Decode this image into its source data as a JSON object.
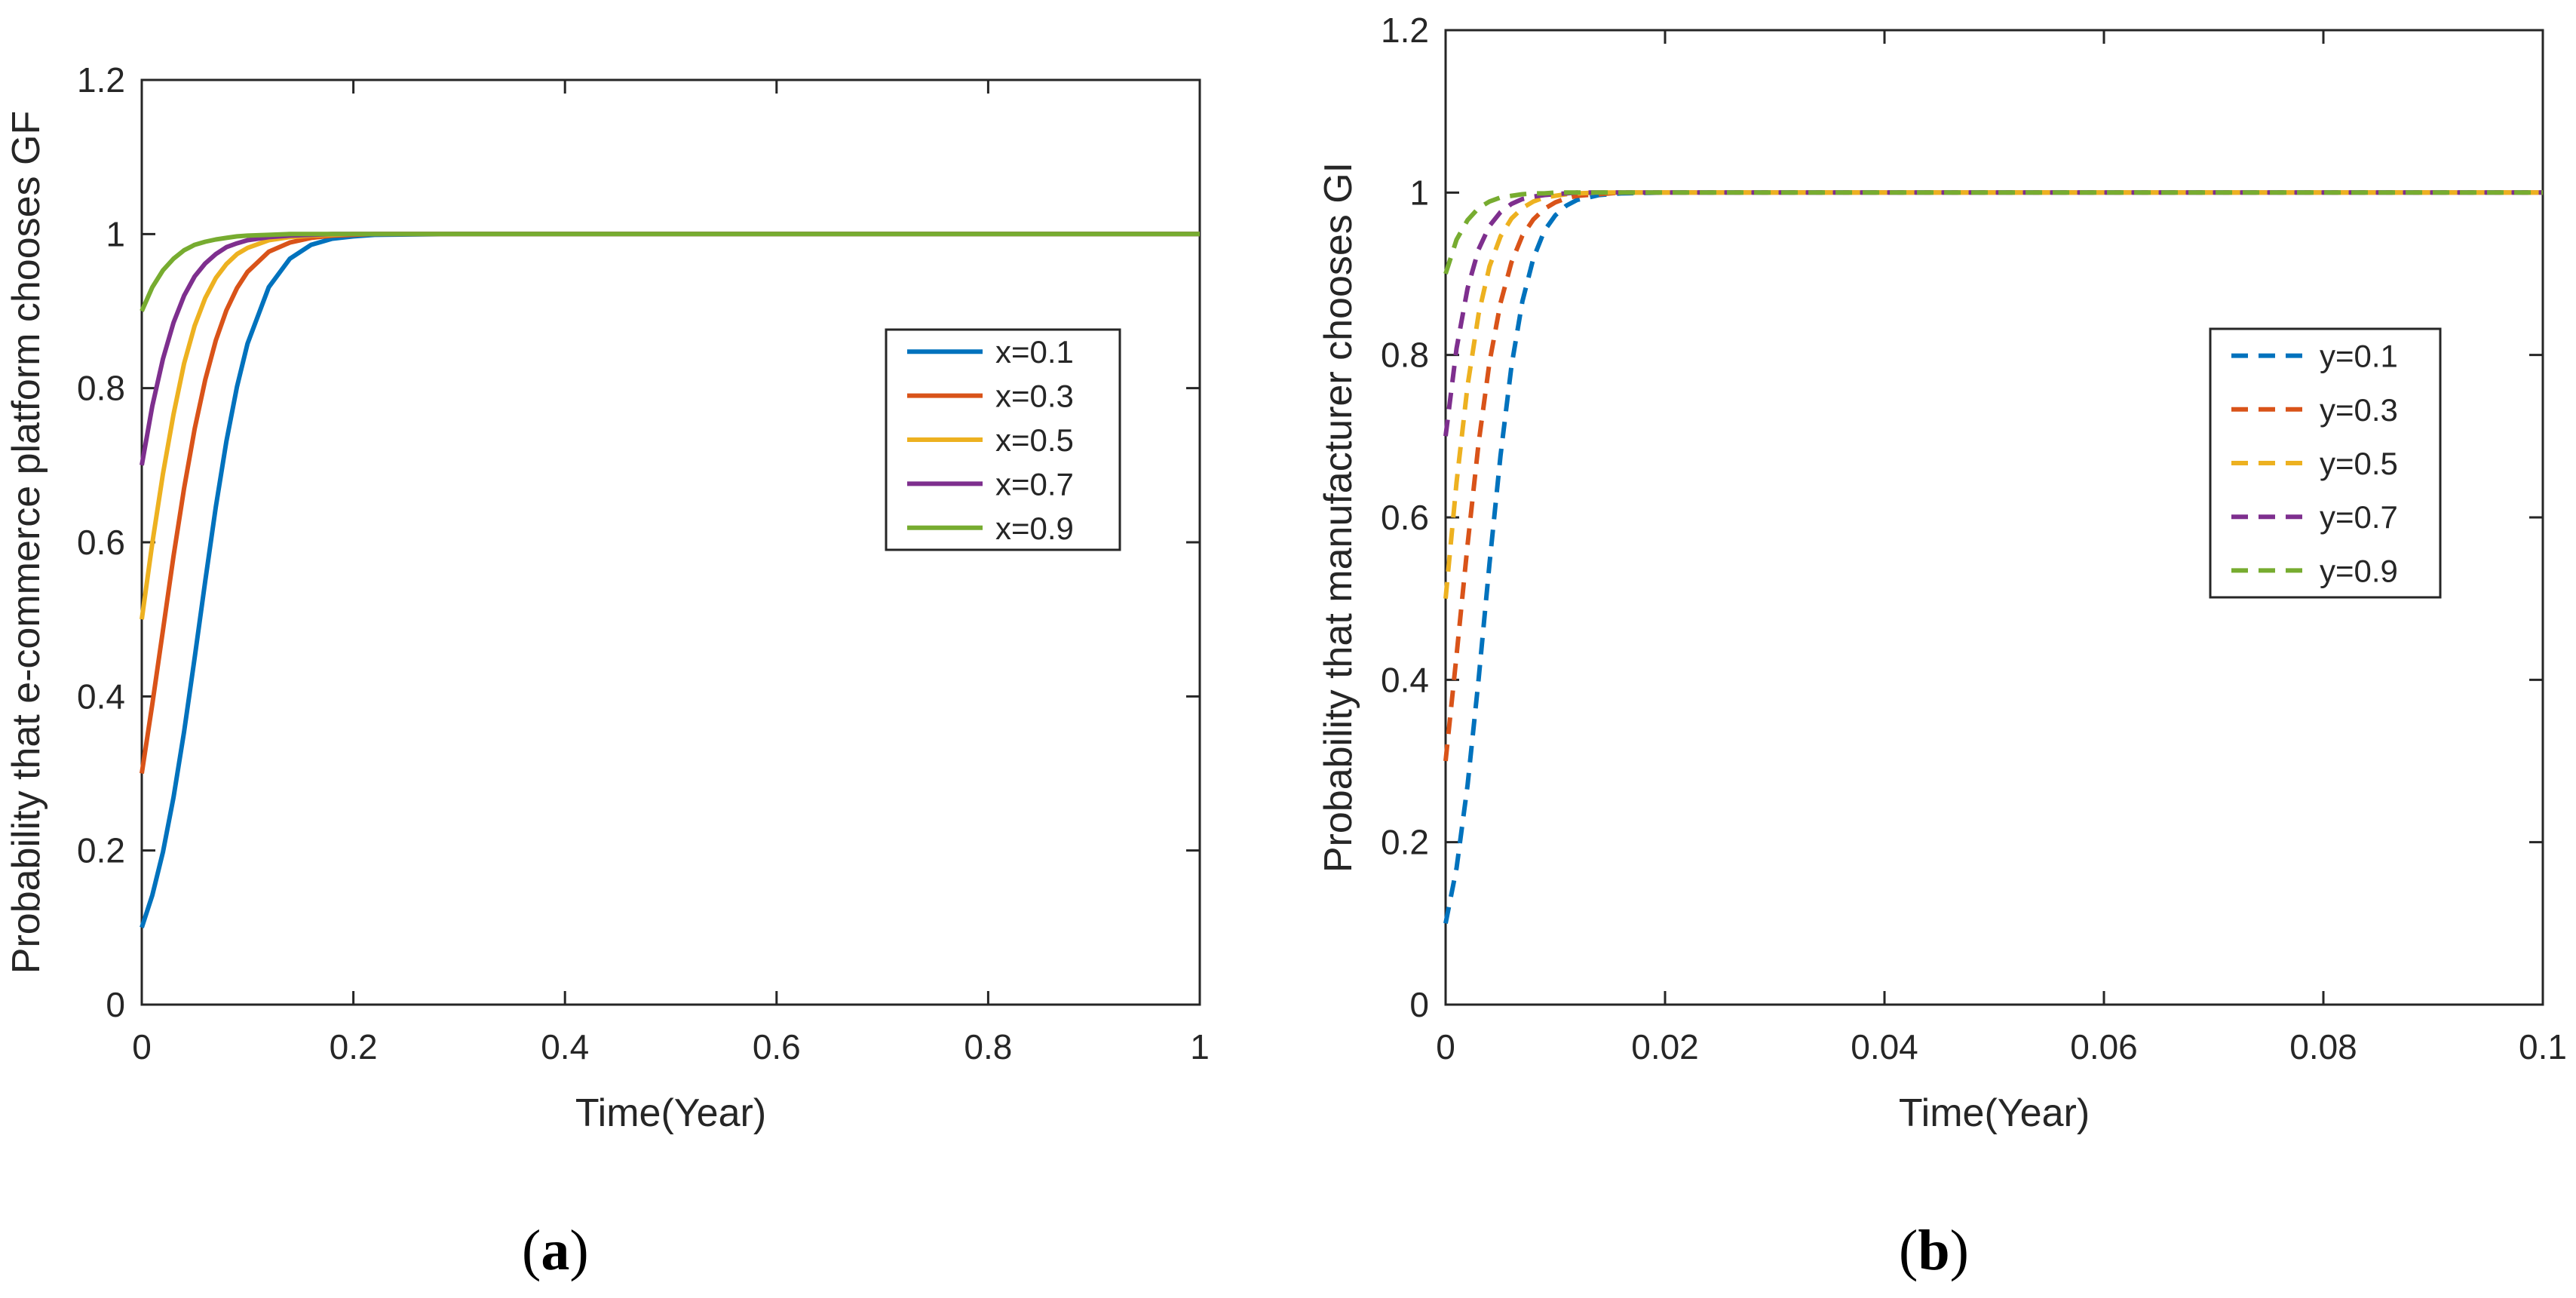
{
  "chart_data": [
    {
      "type": "line",
      "panel": "a",
      "xlabel": "Time(Year)",
      "ylabel": "Probability that e-commerce platform chooses GF",
      "xlim": [
        0,
        1
      ],
      "ylim": [
        0,
        1.2
      ],
      "xticks": [
        "0",
        "0.2",
        "0.4",
        "0.6",
        "0.8",
        "1"
      ],
      "yticks": [
        "0",
        "0.2",
        "0.4",
        "0.6",
        "0.8",
        "1",
        "1.2"
      ],
      "line_style": "solid",
      "legend_position": "right",
      "x": [
        0,
        0.01,
        0.02,
        0.03,
        0.04,
        0.05,
        0.06,
        0.07,
        0.08,
        0.09,
        0.1,
        0.12,
        0.14,
        0.16,
        0.18,
        0.2,
        0.22,
        0.3,
        0.4,
        0.5,
        0.6,
        0.7,
        0.8,
        0.9,
        1.0
      ],
      "series": [
        {
          "name": "x=0.1",
          "color": "#0072BD",
          "values": [
            0.1,
            0.142,
            0.198,
            0.269,
            0.354,
            0.45,
            0.55,
            0.646,
            0.731,
            0.802,
            0.858,
            0.931,
            0.968,
            0.986,
            0.994,
            0.997,
            0.999,
            1.0,
            1.0,
            1.0,
            1.0,
            1.0,
            1.0,
            1.0,
            1.0
          ]
        },
        {
          "name": "x=0.3",
          "color": "#D95319",
          "values": [
            0.3,
            0.39,
            0.486,
            0.582,
            0.67,
            0.747,
            0.811,
            0.862,
            0.901,
            0.93,
            0.951,
            0.977,
            0.989,
            0.995,
            0.998,
            0.999,
            1.0,
            1.0,
            1.0,
            1.0,
            1.0,
            1.0,
            1.0,
            1.0,
            1.0
          ]
        },
        {
          "name": "x=0.5",
          "color": "#EDB120",
          "values": [
            0.5,
            0.599,
            0.689,
            0.766,
            0.832,
            0.881,
            0.917,
            0.943,
            0.961,
            0.974,
            0.982,
            0.992,
            0.996,
            0.998,
            0.999,
            1.0,
            1.0,
            1.0,
            1.0,
            1.0,
            1.0,
            1.0,
            1.0,
            1.0,
            1.0
          ]
        },
        {
          "name": "x=0.7",
          "color": "#7E2F8E",
          "values": [
            0.7,
            0.777,
            0.838,
            0.885,
            0.92,
            0.945,
            0.962,
            0.974,
            0.983,
            0.988,
            0.992,
            0.996,
            0.998,
            0.999,
            1.0,
            1.0,
            1.0,
            1.0,
            1.0,
            1.0,
            1.0,
            1.0,
            1.0,
            1.0,
            1.0
          ]
        },
        {
          "name": "x=0.9",
          "color": "#77AC30",
          "values": [
            0.9,
            0.931,
            0.953,
            0.968,
            0.979,
            0.986,
            0.99,
            0.993,
            0.995,
            0.997,
            0.998,
            0.999,
            1.0,
            1.0,
            1.0,
            1.0,
            1.0,
            1.0,
            1.0,
            1.0,
            1.0,
            1.0,
            1.0,
            1.0,
            1.0
          ]
        }
      ]
    },
    {
      "type": "line",
      "panel": "b",
      "xlabel": "Time(Year)",
      "ylabel": "Probability that manufacturer chooses GI",
      "xlim": [
        0,
        0.1
      ],
      "ylim": [
        0,
        1.2
      ],
      "xticks": [
        "0",
        "0.02",
        "0.04",
        "0.06",
        "0.08",
        "0.1"
      ],
      "yticks": [
        "0",
        "0.2",
        "0.4",
        "0.6",
        "0.8",
        "1",
        "1.2"
      ],
      "line_style": "dashed",
      "legend_position": "right",
      "x": [
        0,
        0.001,
        0.002,
        0.003,
        0.004,
        0.005,
        0.006,
        0.007,
        0.008,
        0.009,
        0.01,
        0.011,
        0.012,
        0.014,
        0.016,
        0.02,
        0.04,
        0.06,
        0.08,
        0.1
      ],
      "series": [
        {
          "name": "y=0.1",
          "color": "#0072BD",
          "values": [
            0.1,
            0.168,
            0.27,
            0.4,
            0.543,
            0.676,
            0.786,
            0.866,
            0.919,
            0.953,
            0.972,
            0.984,
            0.991,
            0.997,
            0.999,
            1.0,
            1.0,
            1.0,
            1.0,
            1.0
          ]
        },
        {
          "name": "y=0.3",
          "color": "#D95319",
          "values": [
            0.3,
            0.43,
            0.566,
            0.691,
            0.791,
            0.864,
            0.914,
            0.947,
            0.967,
            0.98,
            0.988,
            0.993,
            0.996,
            0.998,
            1.0,
            1.0,
            1.0,
            1.0,
            1.0,
            1.0
          ]
        },
        {
          "name": "y=0.5",
          "color": "#EDB120",
          "values": [
            0.5,
            0.643,
            0.762,
            0.85,
            0.909,
            0.946,
            0.968,
            0.981,
            0.989,
            0.994,
            0.996,
            0.998,
            0.999,
            1.0,
            1.0,
            1.0,
            1.0,
            1.0,
            1.0,
            1.0
          ]
        },
        {
          "name": "y=0.7",
          "color": "#7E2F8E",
          "values": [
            0.7,
            0.808,
            0.882,
            0.93,
            0.959,
            0.976,
            0.986,
            0.992,
            0.995,
            0.997,
            0.998,
            0.999,
            1.0,
            1.0,
            1.0,
            1.0,
            1.0,
            1.0,
            1.0,
            1.0
          ]
        },
        {
          "name": "y=0.9",
          "color": "#77AC30",
          "values": [
            0.9,
            0.942,
            0.966,
            0.981,
            0.989,
            0.994,
            0.996,
            0.998,
            0.999,
            0.999,
            1.0,
            1.0,
            1.0,
            1.0,
            1.0,
            1.0,
            1.0,
            1.0,
            1.0,
            1.0
          ]
        }
      ]
    }
  ],
  "panel_labels": {
    "a": {
      "open": "(",
      "letter": "a",
      "close": ")"
    },
    "b": {
      "open": "(",
      "letter": "b",
      "close": ")"
    }
  }
}
